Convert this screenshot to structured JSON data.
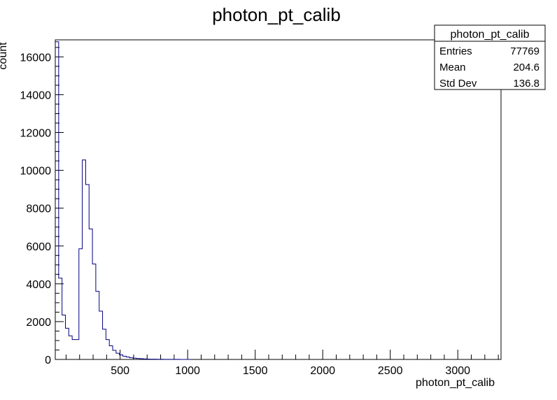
{
  "chart_data": {
    "type": "histogram",
    "title": "photon_pt_calib",
    "xlabel": "photon_pt_calib",
    "ylabel": "count",
    "xlim": [
      20,
      3320
    ],
    "ylim": [
      0,
      16900
    ],
    "x_ticks": [
      500,
      1000,
      1500,
      2000,
      2500,
      3000
    ],
    "y_ticks": [
      0,
      2000,
      4000,
      6000,
      8000,
      10000,
      12000,
      14000,
      16000
    ],
    "bin_width": 25,
    "bin_start": 20,
    "values": [
      16800,
      4300,
      2350,
      1650,
      1250,
      1050,
      1050,
      5850,
      10550,
      9250,
      6900,
      5050,
      3600,
      2550,
      1600,
      1050,
      720,
      480,
      330,
      240,
      170,
      130,
      90,
      70,
      50,
      40,
      30,
      20,
      15,
      12,
      10,
      8,
      6,
      5,
      4,
      3,
      3,
      2,
      2,
      1
    ],
    "line_color": "#000080",
    "grid": false,
    "stats": {
      "name": "photon_pt_calib",
      "rows": [
        {
          "label": "Entries",
          "value": "77769"
        },
        {
          "label": "Mean",
          "value": "204.6"
        },
        {
          "label": "Std Dev",
          "value": "136.8"
        }
      ]
    }
  }
}
